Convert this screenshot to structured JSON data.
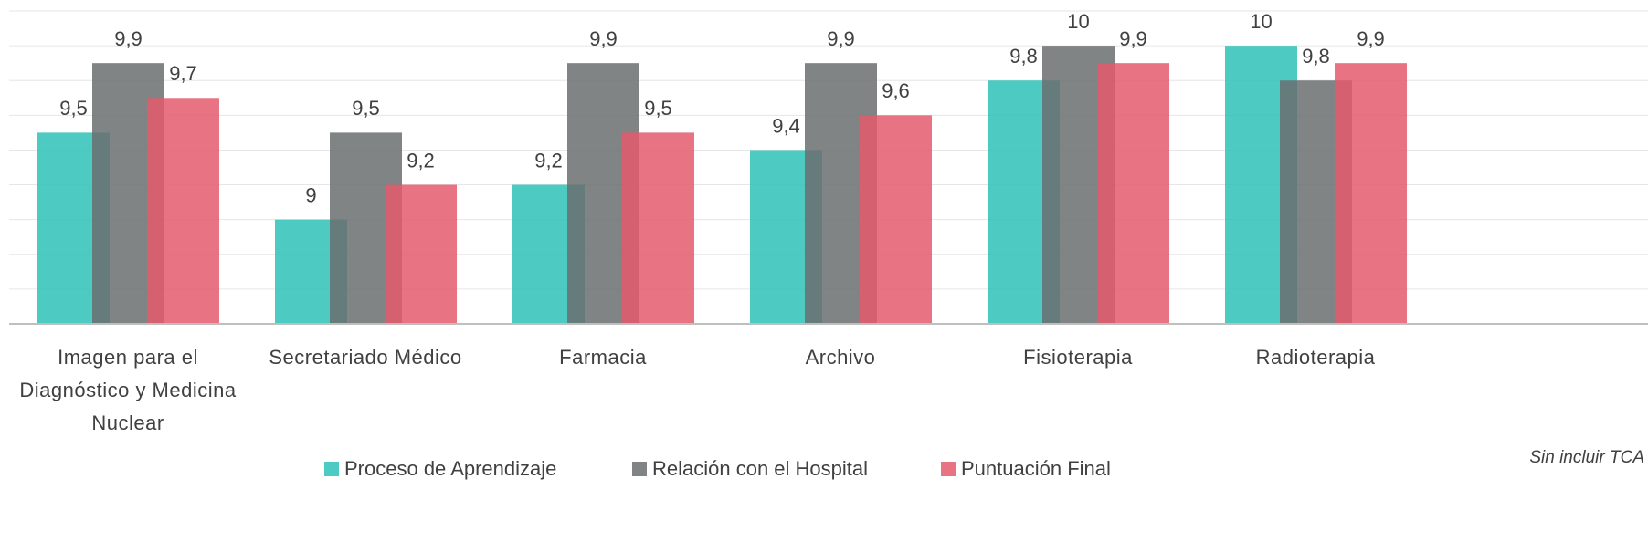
{
  "chart_data": {
    "type": "bar",
    "annotation": "Sin incluir TCA",
    "categories": [
      "Imagen para el Diagnóstico y Medicina Nuclear",
      "Secretariado Médico",
      "Farmacia",
      "Archivo",
      "Fisioterapia",
      "Radioterapia"
    ],
    "series": [
      {
        "name": "Proceso de Aprendizaje",
        "color": "#2ec2b8",
        "values": [
          9.5,
          9,
          9.2,
          9.4,
          9.8,
          10
        ],
        "value_labels": [
          "9,5",
          "9",
          "9,2",
          "9,4",
          "9,8",
          "10"
        ]
      },
      {
        "name": "Relación con el Hospital",
        "color": "#6b6e70",
        "values": [
          9.9,
          9.5,
          9.9,
          9.9,
          10,
          9.8
        ],
        "value_labels": [
          "9,9",
          "9,5",
          "9,9",
          "9,9",
          "10",
          "9,8"
        ]
      },
      {
        "name": "Puntuación Final",
        "color": "#e45a6c",
        "values": [
          9.7,
          9.2,
          9.5,
          9.6,
          9.9,
          9.9
        ],
        "value_labels": [
          "9,7",
          "9,2",
          "9,5",
          "9,6",
          "9,9",
          "9,9"
        ]
      }
    ],
    "ylim": [
      8.4,
      10.2
    ],
    "yticks": [
      8.4,
      8.6,
      8.8,
      9,
      9.2,
      9.4,
      9.6,
      9.8,
      10,
      10.2
    ],
    "grid": true,
    "legend": "bottom"
  }
}
